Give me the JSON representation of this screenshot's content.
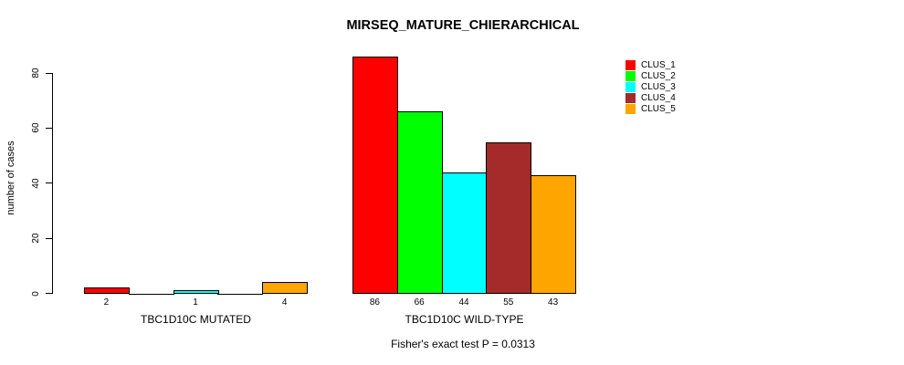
{
  "chart_data": {
    "type": "bar",
    "title": "MIRSEQ_MATURE_CHIERARCHICAL",
    "ylabel": "number of cases",
    "ylim": [
      0,
      80
    ],
    "yticks": [
      0,
      20,
      40,
      60,
      80
    ],
    "grid": false,
    "series_names": [
      "CLUS_1",
      "CLUS_2",
      "CLUS_3",
      "CLUS_4",
      "CLUS_5"
    ],
    "colors": [
      "#FF0000",
      "#00FF00",
      "#00FFFF",
      "#A52A2A",
      "#FFA500"
    ],
    "groups": [
      {
        "label": "TBC1D10C MUTATED",
        "values": [
          2,
          0,
          1,
          0,
          4
        ]
      },
      {
        "label": "TBC1D10C WILD-TYPE",
        "values": [
          86,
          66,
          44,
          55,
          43
        ]
      }
    ],
    "legend": {
      "position": "topright",
      "entries": [
        {
          "label": "CLUS_1",
          "color": "#FF0000"
        },
        {
          "label": "CLUS_2",
          "color": "#00FF00"
        },
        {
          "label": "CLUS_3",
          "color": "#00FFFF"
        },
        {
          "label": "CLUS_4",
          "color": "#A52A2A"
        },
        {
          "label": "CLUS_5",
          "color": "#FFA500"
        }
      ]
    },
    "footnote": "Fisher's exact test P = 0.0313"
  }
}
